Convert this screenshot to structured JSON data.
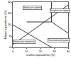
{
  "chart_data": {
    "type": "line",
    "x_label": "Cromo equivalente (%)",
    "y_label": "Níquel equivalente (%)",
    "xlim": [
      0,
      40
    ],
    "xticks": [
      0,
      10,
      20,
      30,
      40
    ],
    "ylim": [
      0,
      32
    ],
    "yticks": [
      0,
      8,
      16,
      24,
      32
    ],
    "grid": false,
    "color": "#000000",
    "series": [
      {
        "x": [
          0,
          40
        ],
        "values": [
          2,
          30
        ]
      },
      {
        "x": [
          0,
          28
        ],
        "values": [
          16,
          0
        ]
      },
      {
        "x": [
          28,
          28
        ],
        "values": [
          18,
          32
        ]
      },
      {
        "x": [
          10,
          28
        ],
        "values": [
          18,
          18
        ]
      },
      {
        "x": [
          28,
          40
        ],
        "values": [
          18,
          10
        ]
      }
    ],
    "annotations": [
      {
        "text": "Grietas en caliente",
        "x": 14,
        "y": 28
      },
      {
        "text": "Fragilización sigma",
        "x": 34,
        "y": 26
      },
      {
        "text": "Crecimiento de grano",
        "x": 33,
        "y": 5
      },
      {
        "text": "Grietas por martensita",
        "x": 8,
        "y": 4
      }
    ]
  }
}
